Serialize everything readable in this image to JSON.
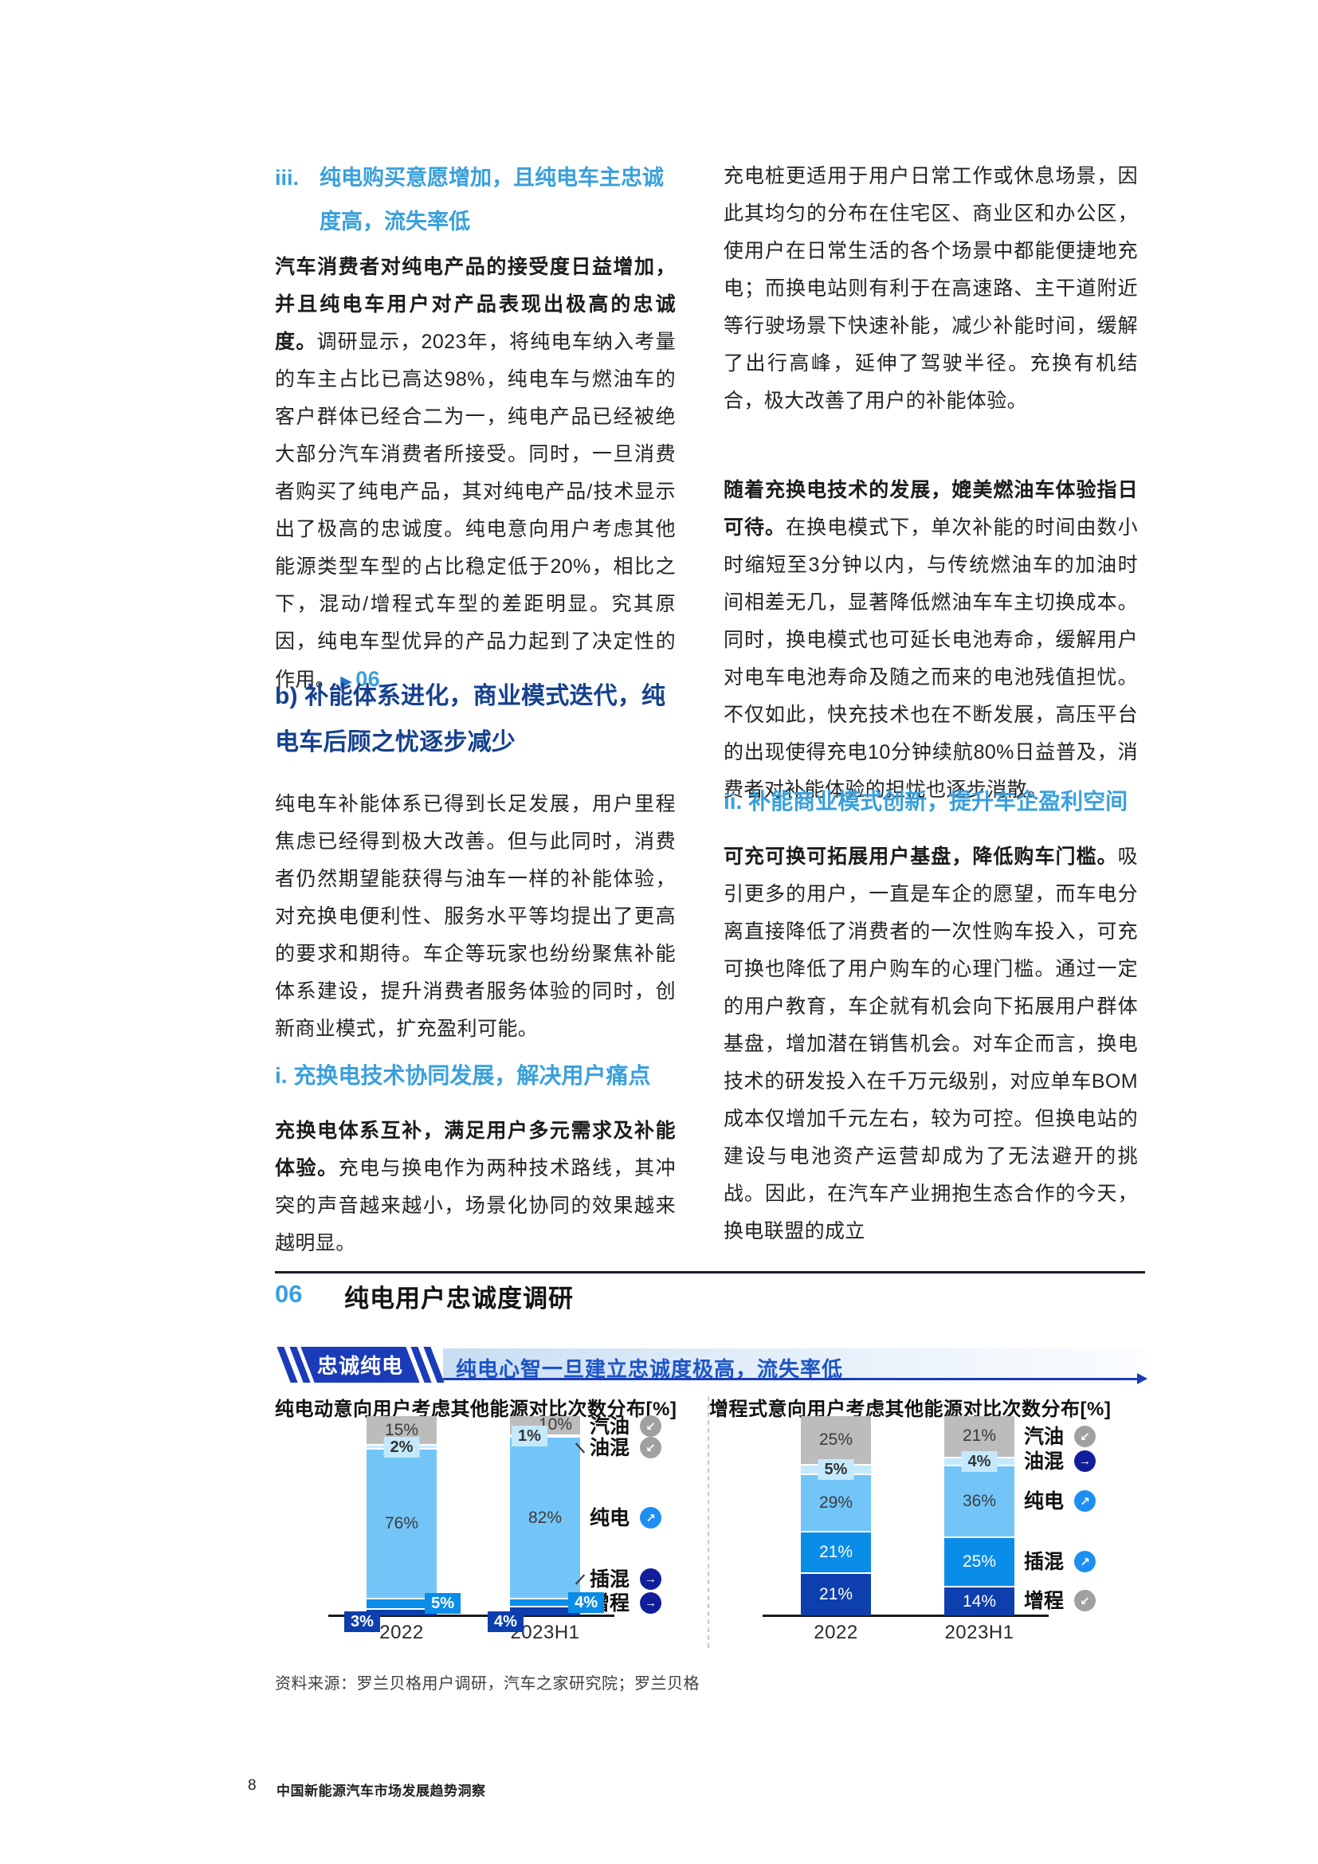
{
  "left_column": {
    "heading_iii_num": "iii.",
    "heading_iii_text": "纯电购买意愿增加，且纯电车主忠诚度高，流失率低",
    "para1_bold": "汽车消费者对纯电产品的接受度日益增加，并且纯电车用户对产品表现出极高的忠诚度。",
    "para1_text": "调研显示，2023年，将纯电车纳入考量的车主占比已高达98%，纯电车与燃油车的客户群体已经合二为一，纯电产品已经被绝大部分汽车消费者所接受。同时，一旦消费者购买了纯电产品，其对纯电产品/技术显示出了极高的忠诚度。纯电意向用户考虑其他能源类型车型的占比稳定低于20%，相比之下，混动/增程式车型的差距明显。究其原因，纯电车型优异的产品力起到了决定性的作用。",
    "ref_marker": "▶",
    "ref_number": "06",
    "heading_b": "b) 补能体系进化，商业模式迭代，纯电车后顾之忧逐步减少",
    "para2": "纯电车补能体系已得到长足发展，用户里程焦虑已经得到极大改善。但与此同时，消费者仍然期望能获得与油车一样的补能体验，对充换电便利性、服务水平等均提出了更高的要求和期待。车企等玩家也纷纷聚焦补能体系建设，提升消费者服务体验的同时，创新商业模式，扩充盈利可能。",
    "heading_i": "i. 充换电技术协同发展，解决用户痛点",
    "para3_bold": "充换电体系互补，满足用户多元需求及补能体验。",
    "para3_text": "充电与换电作为两种技术路线，其冲突的声音越来越小，场景化协同的效果越来越明显。"
  },
  "right_column": {
    "para1": "充电桩更适用于用户日常工作或休息场景，因此其均匀的分布在住宅区、商业区和办公区，使用户在日常生活的各个场景中都能便捷地充电；而换电站则有利于在高速路、主干道附近等行驶场景下快速补能，减少补能时间，缓解了出行高峰，延伸了驾驶半径。充换有机结合，极大改善了用户的补能体验。",
    "para2_bold": "随着充换电技术的发展，媲美燃油车体验指日可待。",
    "para2_text": "在换电模式下，单次补能的时间由数小时缩短至3分钟以内，与传统燃油车的加油时间相差无几，显著降低燃油车车主切换成本。同时，换电模式也可延长电池寿命，缓解用户对电车电池寿命及随之而来的电池残值担忧。不仅如此，快充技术也在不断发展，高压平台的出现使得充电10分钟续航80%日益普及，消费者对补能体验的担忧也逐步消散。",
    "heading_ii": "ii. 补能商业模式创新，提升车企盈利空间",
    "para3_bold": "可充可换可拓展用户基盘，降低购车门槛。",
    "para3_text": "吸引更多的用户，一直是车企的愿望，而车电分离直接降低了消费者的一次性购车投入，可充可换也降低了用户购车的心理门槛。通过一定的用户教育，车企就有机会向下拓展用户群体基盘，增加潜在销售机会。对车企而言，换电技术的研发投入在千万元级别，对应单车BOM成本仅增加千元左右，较为可控。但换电站的建设与电池资产运营却成为了无法避开的挑战。因此，在汽车产业拥抱生态合作的今天，换电联盟的成立"
  },
  "figure": {
    "number": "06",
    "title": "纯电用户忠诚度调研",
    "badge": "忠诚纯电",
    "banner": "纯电心智一旦建立忠诚度极高，流失率低",
    "source": "资料来源：罗兰贝格用户调研，汽车之家研究院；罗兰贝格"
  },
  "footer": {
    "page_number": "8",
    "title": "中国新能源汽车市场发展趋势洞察"
  },
  "colors": {
    "accent_light_blue": "#3aa0dc",
    "accent_dark_blue": "#15418f",
    "ribbon_blue": "#1b3cb8",
    "banner_text_blue": "#1d55c8"
  },
  "chart_data": [
    {
      "type": "bar",
      "stacked": true,
      "title": "纯电动意向用户考虑其他能源对比次数分布[%]",
      "categories": [
        "2022",
        "2023H1"
      ],
      "unit": "%",
      "ylim": [
        0,
        100
      ],
      "grid": false,
      "legend_position": "right",
      "series": [
        {
          "name": "汽油",
          "values": [
            15,
            10
          ],
          "color": "#bcbcbc",
          "label_color": "dark",
          "trend": "down"
        },
        {
          "name": "油混",
          "values": [
            2,
            1
          ],
          "color": "#c5e9fc",
          "label_color": "dark",
          "trend": "down"
        },
        {
          "name": "纯电",
          "values": [
            76,
            82
          ],
          "color": "#73c5f8",
          "label_color": "dark",
          "trend": "up"
        },
        {
          "name": "插混",
          "values": [
            5,
            4
          ],
          "color": "#0a8de9",
          "label_color": "white",
          "trend": "flat"
        },
        {
          "name": "增程",
          "values": [
            3,
            4
          ],
          "color": "#0d3fae",
          "label_color": "white",
          "trend": "flat"
        }
      ],
      "label_layout": [
        {
          "1": "box-center",
          "3": "box-right",
          "4": "box-left-below"
        },
        {
          "0": "inside-right",
          "1": "box-left",
          "3": "box-right",
          "4": "box-left-below"
        }
      ],
      "legend_y": [
        13,
        40,
        128,
        205,
        235
      ],
      "legend_connectors": [
        null,
        "back",
        null,
        "fwd",
        "fwd"
      ]
    },
    {
      "type": "bar",
      "stacked": true,
      "title": "增程式意向用户考虑其他能源对比次数分布[%]",
      "categories": [
        "2022",
        "2023H1"
      ],
      "unit": "%",
      "ylim": [
        0,
        100
      ],
      "grid": false,
      "legend_position": "right",
      "series": [
        {
          "name": "汽油",
          "values": [
            25,
            21
          ],
          "color": "#bcbcbc",
          "label_color": "dark",
          "trend": "down"
        },
        {
          "name": "油混",
          "values": [
            5,
            4
          ],
          "color": "#c5e9fc",
          "label_color": "dark",
          "trend": "flat"
        },
        {
          "name": "纯电",
          "values": [
            29,
            36
          ],
          "color": "#73c5f8",
          "label_color": "dark",
          "trend": "up"
        },
        {
          "name": "插混",
          "values": [
            21,
            25
          ],
          "color": "#0a8de9",
          "label_color": "white",
          "trend": "up"
        },
        {
          "name": "增程",
          "values": [
            21,
            14
          ],
          "color": "#0d3fae",
          "label_color": "white",
          "trend": "down"
        }
      ],
      "label_layout": [
        {
          "1": "box-center"
        },
        {
          "1": "box-center"
        }
      ],
      "legend_y": [
        26,
        57,
        107,
        183,
        232
      ],
      "legend_connectors": [
        null,
        null,
        null,
        null,
        null
      ]
    }
  ]
}
